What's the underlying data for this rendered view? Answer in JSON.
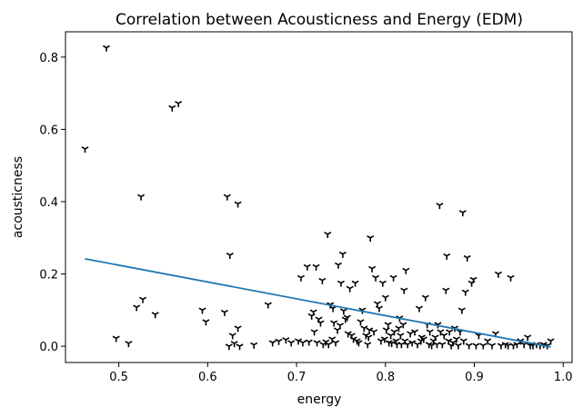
{
  "chart_data": {
    "type": "scatter",
    "title": "Correlation between Acousticness and Energy (EDM)",
    "xlabel": "energy",
    "ylabel": "acousticness",
    "xlim": [
      0.44,
      1.01
    ],
    "ylim": [
      -0.045,
      0.87
    ],
    "xticks": [
      0.5,
      0.6,
      0.7,
      0.8,
      0.9,
      1.0
    ],
    "xtick_labels": [
      "0.5",
      "0.6",
      "0.7",
      "0.8",
      "0.9",
      "1.0"
    ],
    "yticks": [
      0.0,
      0.2,
      0.4,
      0.6,
      0.8
    ],
    "ytick_labels": [
      "0.0",
      "0.2",
      "0.4",
      "0.6",
      "0.8"
    ],
    "grid": false,
    "marker": "tri-down",
    "marker_color": "#000000",
    "trend_color": "#1f77b4",
    "points": [
      [
        0.462,
        0.546
      ],
      [
        0.486,
        0.826
      ],
      [
        0.497,
        0.022
      ],
      [
        0.511,
        0.008
      ],
      [
        0.52,
        0.108
      ],
      [
        0.525,
        0.414
      ],
      [
        0.527,
        0.13
      ],
      [
        0.541,
        0.088
      ],
      [
        0.56,
        0.66
      ],
      [
        0.567,
        0.672
      ],
      [
        0.594,
        0.1
      ],
      [
        0.598,
        0.068
      ],
      [
        0.619,
        0.094
      ],
      [
        0.622,
        0.414
      ],
      [
        0.624,
        0.0
      ],
      [
        0.625,
        0.252
      ],
      [
        0.628,
        0.03
      ],
      [
        0.63,
        0.008
      ],
      [
        0.634,
        0.05
      ],
      [
        0.634,
        0.394
      ],
      [
        0.636,
        0.0
      ],
      [
        0.652,
        0.004
      ],
      [
        0.668,
        0.115
      ],
      [
        0.673,
        0.01
      ],
      [
        0.68,
        0.014
      ],
      [
        0.688,
        0.018
      ],
      [
        0.694,
        0.01
      ],
      [
        0.702,
        0.015
      ],
      [
        0.705,
        0.19
      ],
      [
        0.707,
        0.01
      ],
      [
        0.712,
        0.22
      ],
      [
        0.714,
        0.012
      ],
      [
        0.717,
        0.084
      ],
      [
        0.719,
        0.095
      ],
      [
        0.72,
        0.04
      ],
      [
        0.722,
        0.22
      ],
      [
        0.723,
        0.01
      ],
      [
        0.725,
        0.075
      ],
      [
        0.727,
        0.065
      ],
      [
        0.729,
        0.182
      ],
      [
        0.73,
        0.005
      ],
      [
        0.733,
        0.012
      ],
      [
        0.735,
        0.31
      ],
      [
        0.736,
        0.005
      ],
      [
        0.738,
        0.115
      ],
      [
        0.74,
        0.02
      ],
      [
        0.741,
        0.105
      ],
      [
        0.742,
        0.065
      ],
      [
        0.744,
        0.01
      ],
      [
        0.746,
        0.045
      ],
      [
        0.747,
        0.225
      ],
      [
        0.749,
        0.058
      ],
      [
        0.75,
        0.175
      ],
      [
        0.752,
        0.255
      ],
      [
        0.753,
        0.098
      ],
      [
        0.755,
        0.075
      ],
      [
        0.757,
        0.08
      ],
      [
        0.758,
        0.035
      ],
      [
        0.76,
        0.16
      ],
      [
        0.762,
        0.03
      ],
      [
        0.764,
        0.02
      ],
      [
        0.766,
        0.175
      ],
      [
        0.768,
        0.015
      ],
      [
        0.77,
        0.01
      ],
      [
        0.772,
        0.068
      ],
      [
        0.774,
        0.1
      ],
      [
        0.776,
        0.05
      ],
      [
        0.778,
        0.03
      ],
      [
        0.78,
        0.005
      ],
      [
        0.781,
        0.025
      ],
      [
        0.782,
        0.045
      ],
      [
        0.783,
        0.3
      ],
      [
        0.785,
        0.215
      ],
      [
        0.787,
        0.04
      ],
      [
        0.789,
        0.19
      ],
      [
        0.791,
        0.118
      ],
      [
        0.793,
        0.105
      ],
      [
        0.795,
        0.015
      ],
      [
        0.797,
        0.175
      ],
      [
        0.799,
        0.02
      ],
      [
        0.8,
        0.135
      ],
      [
        0.801,
        0.045
      ],
      [
        0.803,
        0.06
      ],
      [
        0.804,
        0.01
      ],
      [
        0.806,
        0.03
      ],
      [
        0.807,
        0.008
      ],
      [
        0.809,
        0.19
      ],
      [
        0.81,
        0.04
      ],
      [
        0.812,
        0.015
      ],
      [
        0.813,
        0.005
      ],
      [
        0.815,
        0.05
      ],
      [
        0.816,
        0.078
      ],
      [
        0.817,
        0.03
      ],
      [
        0.818,
        0.005
      ],
      [
        0.82,
        0.06
      ],
      [
        0.821,
        0.155
      ],
      [
        0.822,
        0.015
      ],
      [
        0.823,
        0.21
      ],
      [
        0.825,
        0.005
      ],
      [
        0.828,
        0.035
      ],
      [
        0.83,
        0.01
      ],
      [
        0.833,
        0.04
      ],
      [
        0.836,
        0.005
      ],
      [
        0.838,
        0.105
      ],
      [
        0.84,
        0.015
      ],
      [
        0.841,
        0.025
      ],
      [
        0.843,
        0.02
      ],
      [
        0.845,
        0.135
      ],
      [
        0.847,
        0.06
      ],
      [
        0.849,
        0.005
      ],
      [
        0.85,
        0.04
      ],
      [
        0.852,
        0.002
      ],
      [
        0.854,
        0.015
      ],
      [
        0.856,
        0.025
      ],
      [
        0.858,
        0.005
      ],
      [
        0.859,
        0.06
      ],
      [
        0.861,
        0.39
      ],
      [
        0.862,
        0.04
      ],
      [
        0.864,
        0.005
      ],
      [
        0.866,
        0.03
      ],
      [
        0.868,
        0.155
      ],
      [
        0.869,
        0.25
      ],
      [
        0.871,
        0.015
      ],
      [
        0.872,
        0.04
      ],
      [
        0.874,
        0.002
      ],
      [
        0.876,
        0.01
      ],
      [
        0.878,
        0.05
      ],
      [
        0.88,
        0.02
      ],
      [
        0.882,
        0.002
      ],
      [
        0.884,
        0.04
      ],
      [
        0.886,
        0.1
      ],
      [
        0.887,
        0.37
      ],
      [
        0.888,
        0.015
      ],
      [
        0.89,
        0.15
      ],
      [
        0.892,
        0.245
      ],
      [
        0.894,
        0.002
      ],
      [
        0.897,
        0.175
      ],
      [
        0.899,
        0.185
      ],
      [
        0.902,
        0.002
      ],
      [
        0.905,
        0.03
      ],
      [
        0.91,
        0.002
      ],
      [
        0.915,
        0.015
      ],
      [
        0.92,
        0.002
      ],
      [
        0.924,
        0.035
      ],
      [
        0.927,
        0.2
      ],
      [
        0.93,
        0.002
      ],
      [
        0.935,
        0.005
      ],
      [
        0.938,
        0.002
      ],
      [
        0.941,
        0.19
      ],
      [
        0.944,
        0.002
      ],
      [
        0.948,
        0.005
      ],
      [
        0.952,
        0.015
      ],
      [
        0.956,
        0.005
      ],
      [
        0.96,
        0.025
      ],
      [
        0.963,
        0.002
      ],
      [
        0.966,
        0.002
      ],
      [
        0.97,
        0.005
      ],
      [
        0.974,
        0.002
      ],
      [
        0.978,
        0.005
      ],
      [
        0.982,
        0.002
      ],
      [
        0.986,
        0.015
      ]
    ],
    "trend_line": {
      "x": [
        0.462,
        0.986
      ],
      "y": [
        0.242,
        -0.002
      ]
    }
  }
}
